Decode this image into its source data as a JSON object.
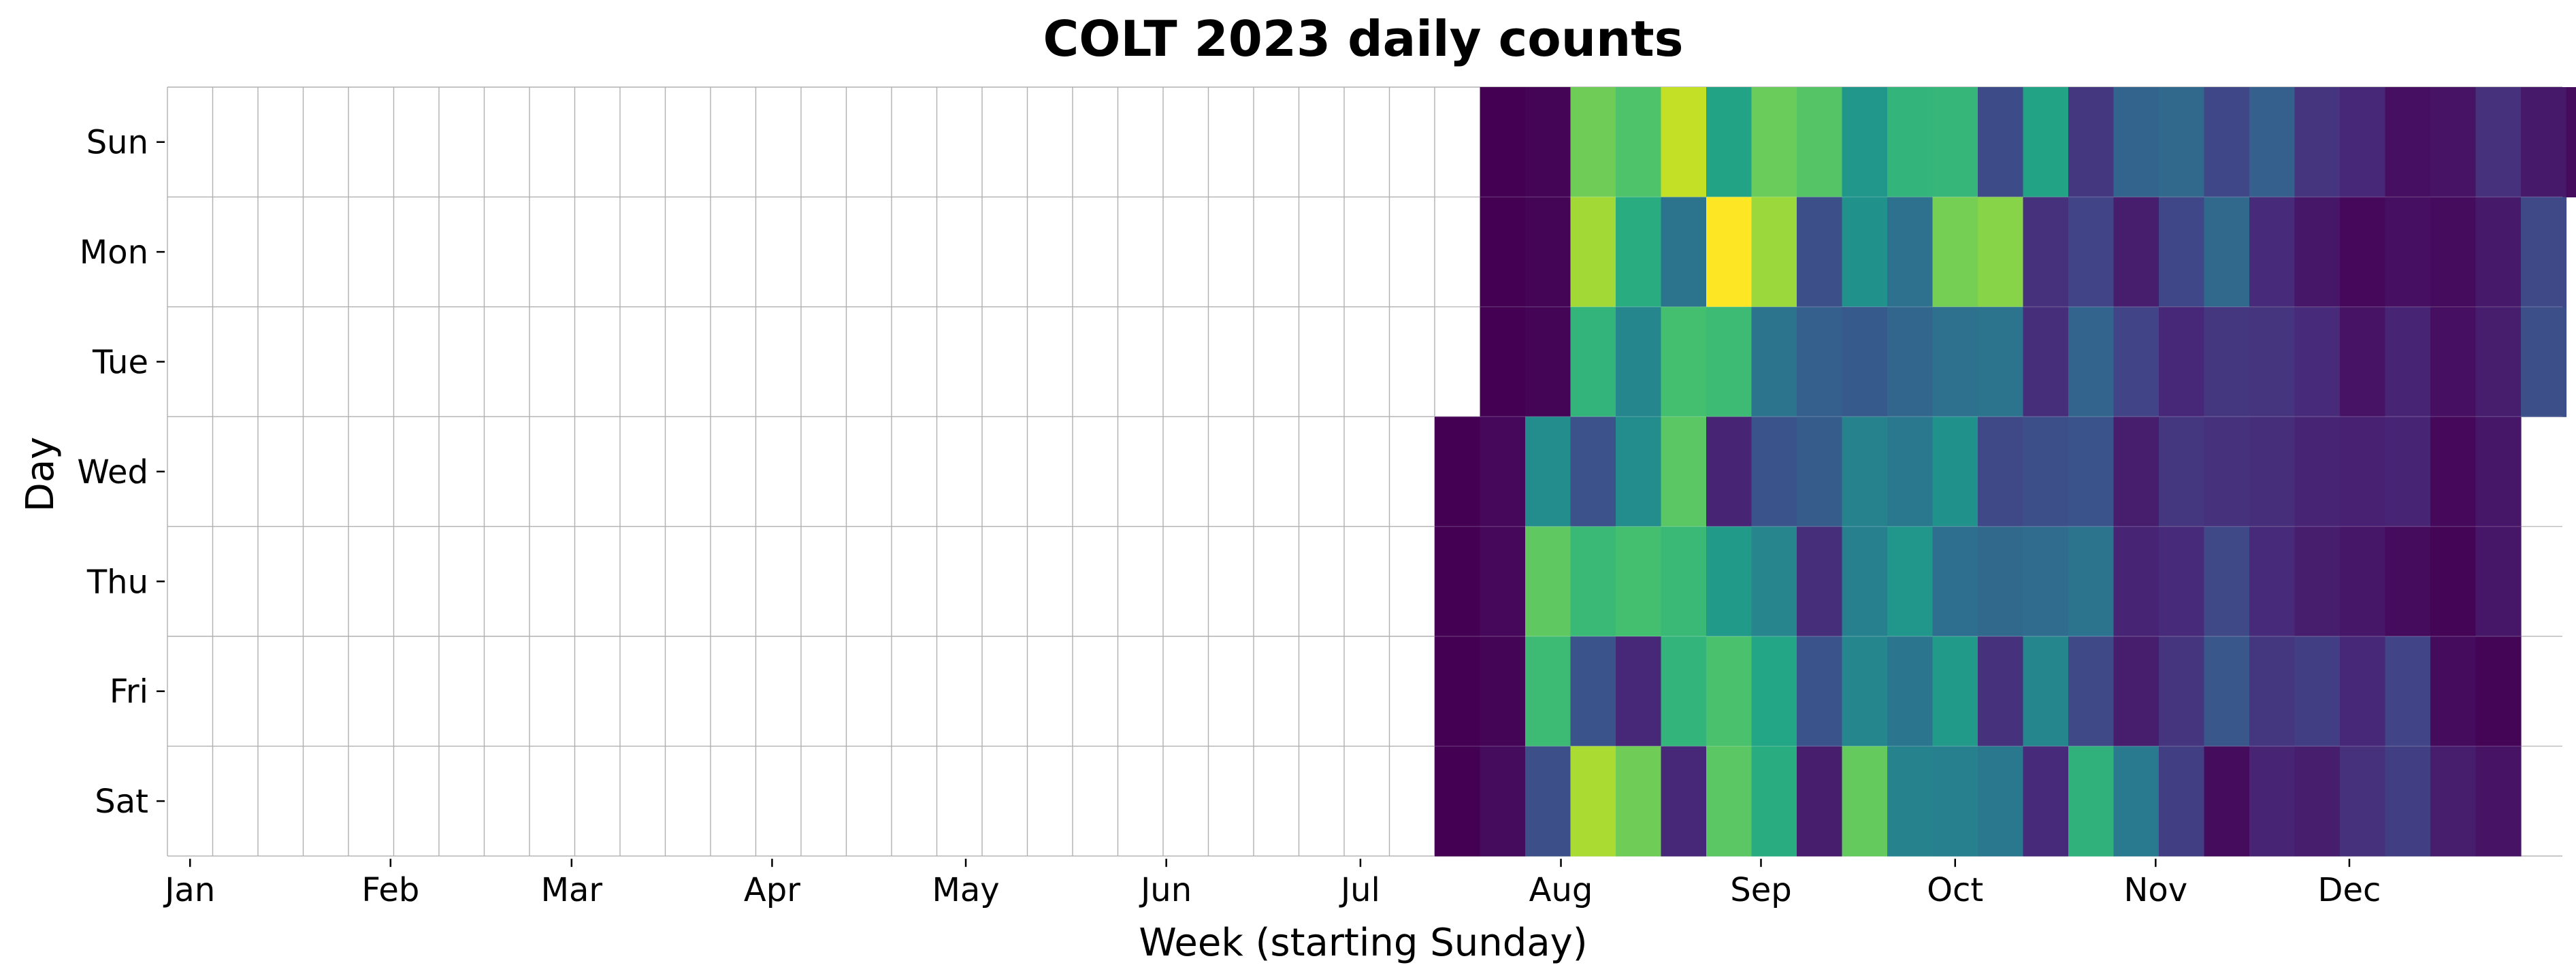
{
  "chart_data": {
    "type": "heatmap",
    "title": "COLT 2023 daily counts",
    "xlabel": "Week (starting Sunday)",
    "ylabel": "Day",
    "days": [
      "Sun",
      "Mon",
      "Tue",
      "Wed",
      "Thu",
      "Fri",
      "Sat"
    ],
    "month_ticks": [
      {
        "label": "Jan",
        "week": 0.0
      },
      {
        "label": "Feb",
        "week": 4.43
      },
      {
        "label": "Mar",
        "week": 8.43
      },
      {
        "label": "Apr",
        "week": 12.86
      },
      {
        "label": "May",
        "week": 17.14
      },
      {
        "label": "Jun",
        "week": 21.57
      },
      {
        "label": "Jul",
        "week": 25.86
      },
      {
        "label": "Aug",
        "week": 30.29
      },
      {
        "label": "Sep",
        "week": 34.71
      },
      {
        "label": "Oct",
        "week": 39.0
      },
      {
        "label": "Nov",
        "week": 43.43
      },
      {
        "label": "Dec",
        "week": 47.71
      }
    ],
    "first_data_week": 28,
    "n_weeks": 53,
    "color_scale": "viridis",
    "vmax": 10,
    "cell_colors": "viridis scale, 0 = darkest purple, 10 = yellow; null = no data (white)",
    "weeks_data": [
      [
        null,
        null,
        null,
        0.0,
        0.0,
        0.0,
        0.0
      ],
      [
        0.0,
        0.0,
        0.0,
        0.2,
        0.2,
        0.1,
        0.3
      ],
      [
        0.1,
        0.1,
        0.1,
        4.8,
        7.5,
        6.8,
        2.4
      ],
      [
        7.8,
        8.6,
        6.5,
        2.5,
        6.7,
        2.6,
        8.7
      ],
      [
        7.2,
        6.2,
        4.6,
        4.8,
        7.0,
        1.1,
        7.8
      ],
      [
        9.1,
        3.8,
        7.0,
        7.4,
        6.7,
        6.5,
        1.1
      ],
      [
        5.8,
        10.0,
        6.8,
        1.0,
        5.4,
        7.1,
        7.4
      ],
      [
        7.7,
        8.5,
        3.8,
        2.6,
        4.5,
        5.9,
        6.2
      ],
      [
        7.3,
        2.4,
        3.0,
        2.9,
        1.3,
        2.6,
        0.8
      ],
      [
        5.2,
        5.0,
        2.8,
        4.4,
        4.3,
        4.6,
        7.6
      ],
      [
        6.5,
        3.7,
        3.3,
        4.0,
        5.2,
        3.9,
        4.4
      ],
      [
        6.6,
        7.9,
        3.7,
        5.0,
        3.6,
        5.4,
        4.3
      ],
      [
        2.3,
        8.2,
        3.8,
        2.2,
        3.4,
        1.4,
        4.0
      ],
      [
        5.8,
        1.4,
        1.3,
        2.4,
        3.5,
        4.6,
        1.2
      ],
      [
        1.6,
        2.0,
        3.2,
        2.6,
        3.8,
        2.2,
        6.4
      ],
      [
        3.2,
        0.8,
        2.0,
        0.8,
        1.0,
        0.8,
        4.1
      ],
      [
        3.4,
        2.1,
        1.1,
        1.6,
        1.2,
        1.5,
        1.8
      ],
      [
        2.1,
        3.4,
        1.6,
        1.4,
        2.2,
        2.7,
        0.3
      ],
      [
        3.0,
        1.2,
        1.5,
        1.3,
        1.2,
        1.6,
        1.0
      ],
      [
        1.5,
        0.6,
        1.2,
        1.0,
        0.8,
        1.8,
        0.8
      ],
      [
        1.1,
        0.2,
        0.5,
        0.9,
        0.6,
        1.1,
        1.4
      ],
      [
        0.4,
        0.4,
        1.0,
        1.0,
        0.3,
        2.0,
        1.8
      ],
      [
        0.5,
        0.3,
        0.4,
        0.2,
        0.1,
        0.3,
        0.8
      ],
      [
        1.4,
        0.7,
        0.8,
        0.6,
        0.6,
        0.1,
        0.5
      ],
      [
        0.7,
        2.2,
        2.4,
        null,
        null,
        null,
        null
      ],
      [
        0.3,
        null,
        null,
        null,
        null,
        null,
        null
      ]
    ]
  }
}
